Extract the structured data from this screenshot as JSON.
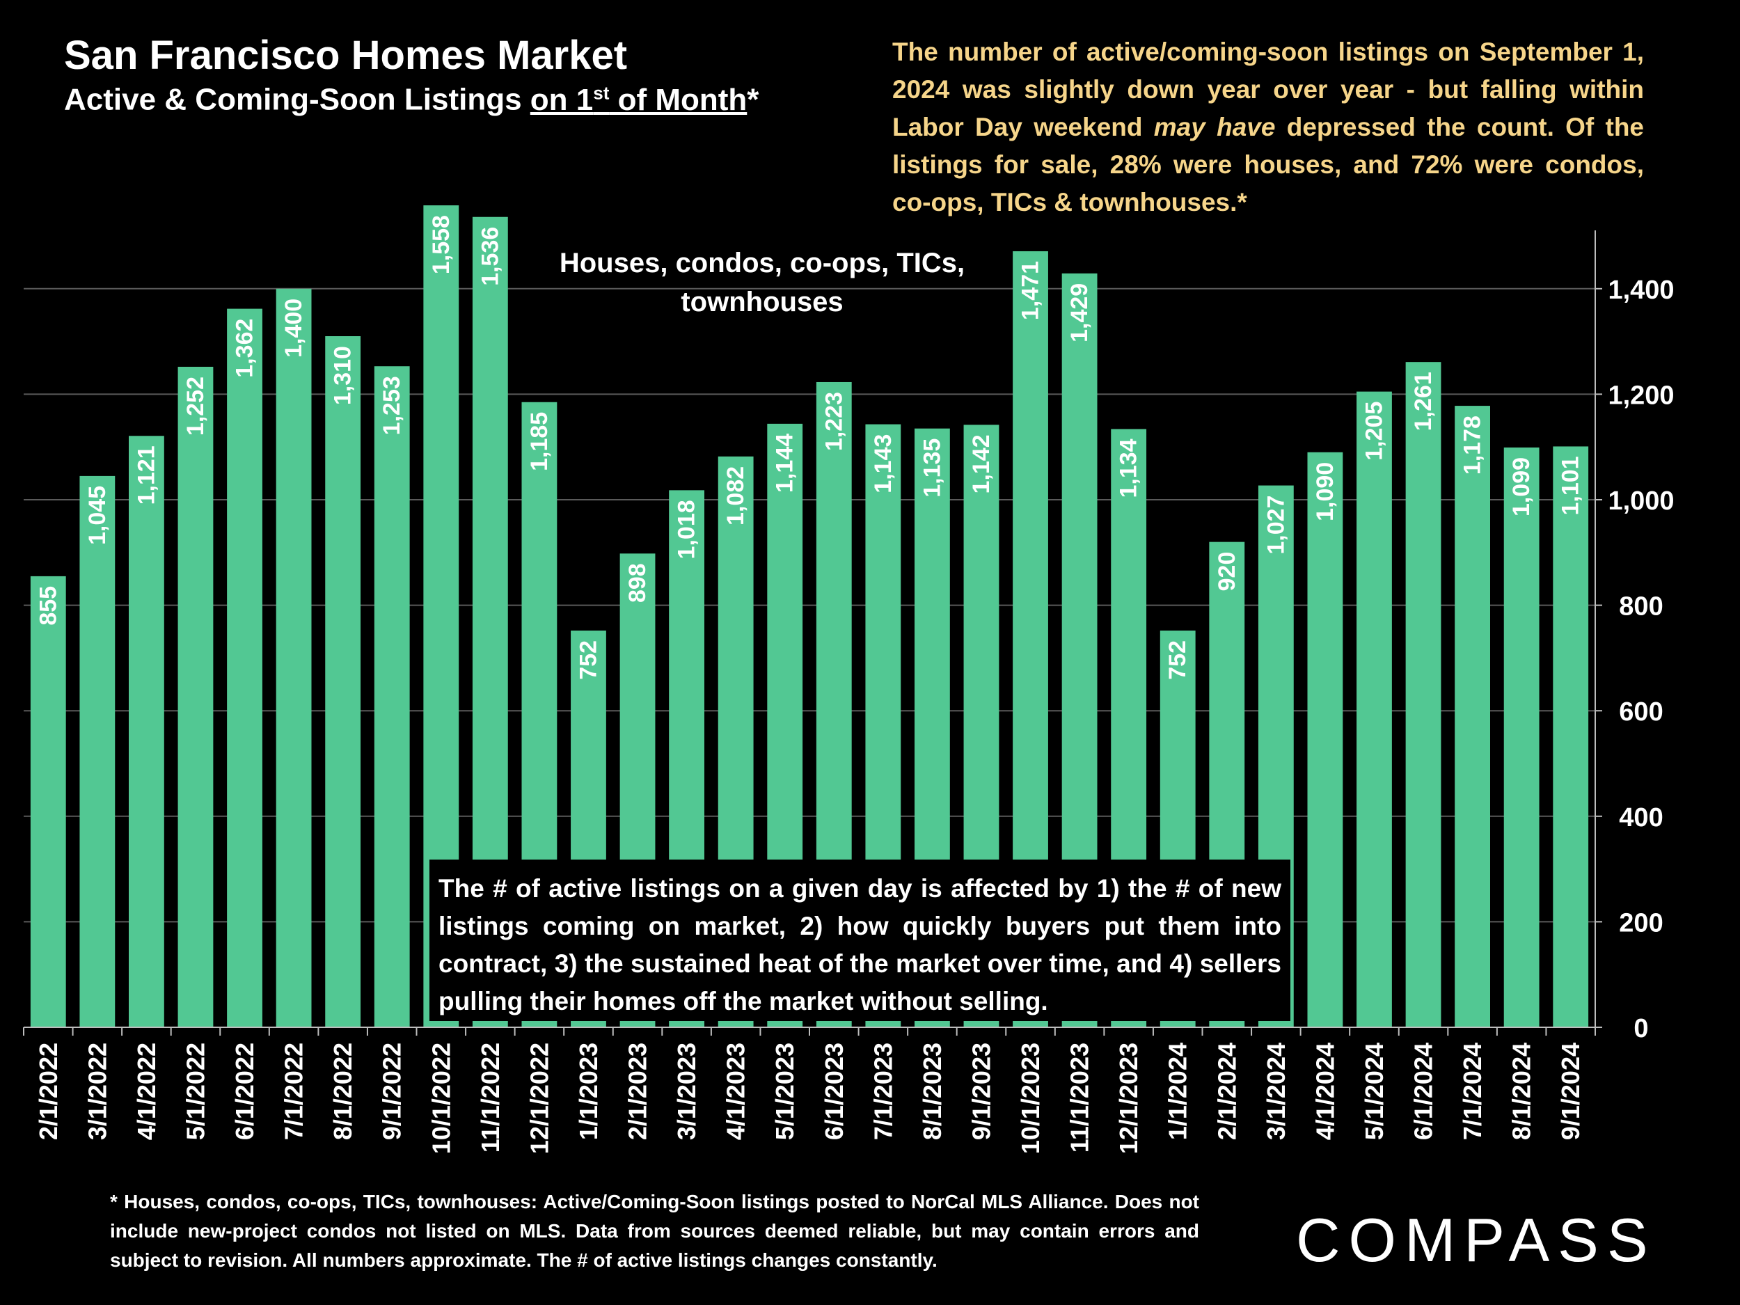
{
  "header": {
    "title": "San Francisco Homes Market",
    "subtitle_pre": "Active & Coming-Soon Listings ",
    "subtitle_ul_a": "on 1",
    "subtitle_sup": "st",
    "subtitle_ul_b": " of Month",
    "subtitle_post": "*"
  },
  "commentary": {
    "part1": "The number of active/coming-soon listings on September 1, 2024 was slightly down year over year - but falling within Labor Day weekend ",
    "emphasis": "may have",
    "part2": " depressed the count. Of the listings for sale, 28% were houses, and 72% were condos, co-ops, TICs & townhouses.*"
  },
  "series_note": "Houses, condos, co-ops, TICs, townhouses",
  "explanation": "The # of active listings on a given day is affected by 1) the # of new listings coming on market, 2) how quickly buyers put them into contract, 3) the sustained heat of the market over time, and 4) sellers pulling their homes off the market without selling.",
  "footnote": "* Houses, condos, co-ops, TICs, townhouses: Active/Coming-Soon listings posted to NorCal MLS Alliance. Does not include new-project condos not listed on MLS. Data from sources deemed reliable, but may contain errors and subject to revision. All numbers approximate. The # of active listings changes constantly.",
  "logo": {
    "text": "COMPASS"
  },
  "colors": {
    "background": "#000000",
    "bar": "#52c893",
    "commentary": "#f6d58a",
    "text": "#ffffff"
  },
  "chart_data": {
    "type": "bar",
    "categories": [
      "2/1/2022",
      "3/1/2022",
      "4/1/2022",
      "5/1/2022",
      "6/1/2022",
      "7/1/2022",
      "8/1/2022",
      "9/1/2022",
      "10/1/2022",
      "11/1/2022",
      "12/1/2022",
      "1/1/2023",
      "2/1/2023",
      "3/1/2023",
      "4/1/2023",
      "5/1/2023",
      "6/1/2023",
      "7/1/2023",
      "8/1/2023",
      "9/1/2023",
      "10/1/2023",
      "11/1/2023",
      "12/1/2023",
      "1/1/2024",
      "2/1/2024",
      "3/1/2024",
      "4/1/2024",
      "5/1/2024",
      "6/1/2024",
      "7/1/2024",
      "8/1/2024",
      "9/1/2024"
    ],
    "values": [
      855,
      1045,
      1121,
      1252,
      1362,
      1400,
      1310,
      1253,
      1558,
      1536,
      1185,
      752,
      898,
      1018,
      1082,
      1144,
      1223,
      1143,
      1135,
      1142,
      1471,
      1429,
      1134,
      752,
      920,
      1027,
      1090,
      1205,
      1261,
      1178,
      1099,
      1101
    ],
    "data_labels": [
      "855",
      "1,045",
      "1,121",
      "1,252",
      "1,362",
      "1,400",
      "1,310",
      "1,253",
      "1,558",
      "1,536",
      "1,185",
      "752",
      "898",
      "1,018",
      "1,082",
      "1,144",
      "1,223",
      "1,143",
      "1,135",
      "1,142",
      "1,471",
      "1,429",
      "1,134",
      "752",
      "920",
      "1,027",
      "1,090",
      "1,205",
      "1,261",
      "1,178",
      "1,099",
      "1,101"
    ],
    "y_ticks": [
      0,
      200,
      400,
      600,
      800,
      1000,
      1200,
      1400
    ],
    "y_tick_labels": [
      "0",
      "200",
      "400",
      "600",
      "800",
      "1,000",
      "1,200",
      "1,400"
    ],
    "ylim": [
      0,
      1500
    ],
    "y_axis_side": "right",
    "grid": true
  }
}
